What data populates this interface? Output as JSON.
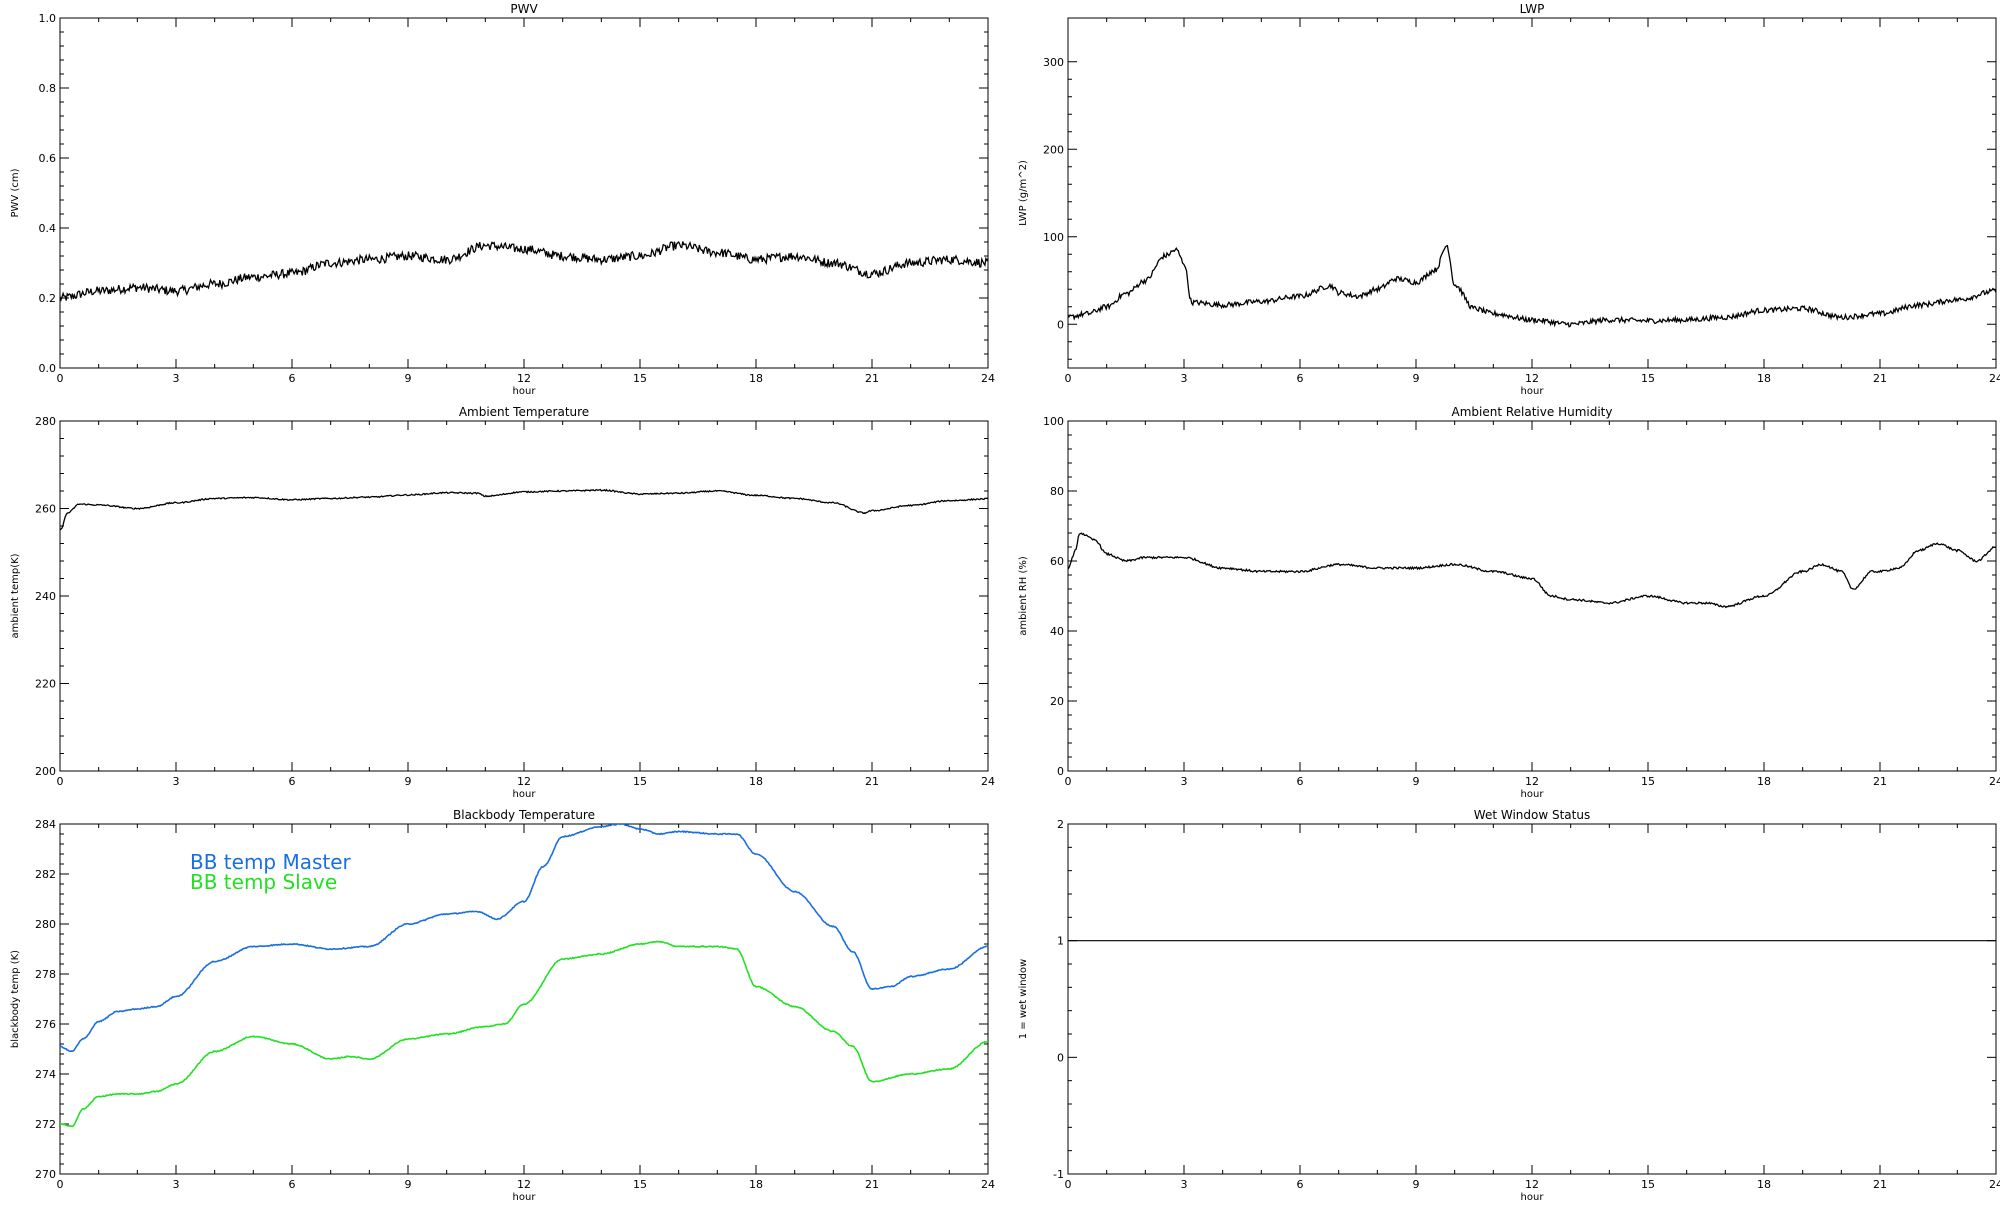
{
  "colors": {
    "master": "#1a6fe0",
    "slave": "#22e022",
    "ink": "#000000"
  },
  "chart_data": [
    {
      "id": "pwv",
      "type": "line",
      "title": "PWV",
      "xlabel": "hour",
      "ylabel": "PWV (cm)",
      "xlim": [
        0,
        24
      ],
      "ylim": [
        0.0,
        1.0
      ],
      "xticks": [
        "0",
        "3",
        "6",
        "9",
        "12",
        "15",
        "18",
        "21",
        "24"
      ],
      "yticks": [
        "0.0",
        "0.2",
        "0.4",
        "0.6",
        "0.8",
        "1.0"
      ],
      "ytick_values": [
        0.0,
        0.2,
        0.4,
        0.6,
        0.8,
        1.0
      ],
      "noise": 0.013,
      "series": [
        {
          "color": "#000000",
          "x": [
            0,
            1,
            2,
            3,
            4,
            5,
            6,
            7,
            8,
            9,
            10,
            11,
            12,
            13,
            14,
            15,
            16,
            17,
            18,
            19,
            20,
            21,
            22,
            23,
            24
          ],
          "y": [
            0.2,
            0.22,
            0.23,
            0.22,
            0.24,
            0.26,
            0.27,
            0.3,
            0.31,
            0.32,
            0.31,
            0.35,
            0.34,
            0.32,
            0.31,
            0.32,
            0.35,
            0.33,
            0.31,
            0.32,
            0.3,
            0.27,
            0.3,
            0.31,
            0.3
          ]
        }
      ]
    },
    {
      "id": "lwp",
      "type": "line",
      "title": "LWP",
      "xlabel": "hour",
      "ylabel": "LWP (g/m^2)",
      "xlim": [
        0,
        24
      ],
      "ylim": [
        -50,
        350
      ],
      "xticks": [
        "0",
        "3",
        "6",
        "9",
        "12",
        "15",
        "18",
        "21",
        "24"
      ],
      "yticks": [
        "0",
        "100",
        "200",
        "300"
      ],
      "ytick_values": [
        0,
        100,
        200,
        300
      ],
      "noise": 3,
      "series": [
        {
          "color": "#000000",
          "x": [
            0,
            0.5,
            1,
            1.5,
            2,
            2.5,
            2.8,
            3,
            3.2,
            4,
            5,
            6,
            6.8,
            7,
            7.5,
            8,
            8.5,
            9,
            9.5,
            9.8,
            10,
            10.5,
            11,
            12,
            13,
            14,
            15,
            16,
            17,
            18,
            19,
            20,
            21,
            22,
            23,
            24
          ],
          "y": [
            8,
            12,
            20,
            35,
            50,
            78,
            85,
            70,
            25,
            22,
            26,
            32,
            44,
            36,
            32,
            40,
            52,
            48,
            62,
            90,
            45,
            18,
            12,
            5,
            0,
            5,
            4,
            5,
            8,
            16,
            18,
            8,
            12,
            22,
            28,
            38
          ]
        }
      ]
    },
    {
      "id": "ambient-temp",
      "type": "line",
      "title": "Ambient Temperature",
      "xlabel": "hour",
      "ylabel": "ambient temp(K)",
      "xlim": [
        0,
        24
      ],
      "ylim": [
        200,
        280
      ],
      "xticks": [
        "0",
        "3",
        "6",
        "9",
        "12",
        "15",
        "18",
        "21",
        "24"
      ],
      "yticks": [
        "200",
        "220",
        "240",
        "260",
        "280"
      ],
      "ytick_values": [
        200,
        220,
        240,
        260,
        280
      ],
      "noise": 0.15,
      "series": [
        {
          "color": "#000000",
          "x": [
            0,
            0.2,
            0.5,
            1,
            2,
            3,
            4,
            5,
            6,
            7,
            8,
            9,
            10,
            10.8,
            11,
            12,
            13,
            14,
            15,
            16,
            17,
            18,
            19,
            20,
            20.8,
            21,
            22,
            23,
            24
          ],
          "y": [
            255,
            259,
            261,
            260.8,
            260,
            261.3,
            262.3,
            262.5,
            262.0,
            262.3,
            262.6,
            263.1,
            263.6,
            263.5,
            262.8,
            263.8,
            264.0,
            264.2,
            263.3,
            263.5,
            264.0,
            263.0,
            262.3,
            261.3,
            259.0,
            259.5,
            260.7,
            261.8,
            262.2
          ]
        }
      ]
    },
    {
      "id": "ambient-rh",
      "type": "line",
      "title": "Ambient Relative Humidity",
      "xlabel": "hour",
      "ylabel": "ambient RH (%)",
      "xlim": [
        0,
        24
      ],
      "ylim": [
        0,
        100
      ],
      "xticks": [
        "0",
        "3",
        "6",
        "9",
        "12",
        "15",
        "18",
        "21",
        "24"
      ],
      "yticks": [
        "0",
        "20",
        "40",
        "60",
        "80",
        "100"
      ],
      "ytick_values": [
        0,
        20,
        40,
        60,
        80,
        100
      ],
      "noise": 0.3,
      "series": [
        {
          "color": "#000000",
          "x": [
            0,
            0.2,
            0.3,
            0.7,
            1,
            1.5,
            2,
            3,
            4,
            5,
            6,
            7,
            8,
            9,
            10,
            11,
            12,
            12.5,
            13,
            14,
            15,
            16,
            16.5,
            17,
            18,
            19,
            19.5,
            20,
            20.3,
            20.8,
            21,
            21.5,
            22,
            22.5,
            23,
            23.5,
            24
          ],
          "y": [
            58,
            63,
            68,
            66,
            62,
            60,
            61,
            61,
            58,
            57,
            57,
            59,
            58,
            58,
            59,
            57,
            55,
            50,
            49,
            48,
            50,
            48,
            48,
            47,
            50,
            57,
            59,
            57,
            52,
            57,
            57,
            58,
            63,
            65,
            63,
            60,
            64
          ]
        }
      ]
    },
    {
      "id": "blackbody-temp",
      "type": "line",
      "title": "Blackbody Temperature",
      "xlabel": "hour",
      "ylabel": "blackbody temp (K)",
      "xlim": [
        0,
        24
      ],
      "ylim": [
        270,
        284
      ],
      "xticks": [
        "0",
        "3",
        "6",
        "9",
        "12",
        "15",
        "18",
        "21",
        "24"
      ],
      "yticks": [
        "270",
        "272",
        "274",
        "276",
        "278",
        "280",
        "282",
        "284"
      ],
      "ytick_values": [
        270,
        272,
        274,
        276,
        278,
        280,
        282,
        284
      ],
      "noise": 0.02,
      "legend": "top-left",
      "series": [
        {
          "name": "BB temp Master",
          "color": "#1a6fe0",
          "x": [
            0,
            0.3,
            0.6,
            1,
            1.5,
            2,
            2.5,
            3,
            4,
            5,
            6,
            7,
            8,
            9,
            10,
            10.8,
            11.3,
            12,
            12.5,
            13,
            14,
            14.5,
            15,
            15.5,
            16,
            17,
            17.5,
            18,
            19,
            20,
            20.5,
            21,
            21.5,
            22,
            23,
            24
          ],
          "y": [
            275.1,
            274.9,
            275.4,
            276.1,
            276.5,
            276.6,
            276.7,
            277.1,
            278.5,
            279.1,
            279.2,
            279.0,
            279.1,
            280.0,
            280.4,
            280.5,
            280.2,
            280.9,
            282.3,
            283.5,
            283.9,
            284.0,
            283.8,
            283.6,
            283.7,
            283.6,
            283.6,
            282.8,
            281.3,
            279.9,
            278.9,
            277.4,
            277.5,
            277.9,
            278.2,
            279.1
          ]
        },
        {
          "name": "BB temp Slave",
          "color": "#22e022",
          "x": [
            0,
            0.3,
            0.6,
            1,
            1.5,
            2,
            2.5,
            3,
            4,
            5,
            6,
            7,
            7.5,
            8,
            9,
            10,
            11,
            11.5,
            12,
            13,
            14,
            15,
            15.5,
            16,
            17,
            17.5,
            18,
            19,
            20,
            20.5,
            21,
            22,
            23,
            24
          ],
          "y": [
            272.0,
            271.9,
            272.6,
            273.1,
            273.2,
            273.2,
            273.3,
            273.6,
            274.9,
            275.5,
            275.2,
            274.6,
            274.7,
            274.6,
            275.4,
            275.6,
            275.9,
            276.0,
            276.8,
            278.6,
            278.8,
            279.2,
            279.3,
            279.1,
            279.1,
            279.0,
            277.5,
            276.7,
            275.7,
            275.1,
            273.7,
            274.0,
            274.2,
            275.3
          ]
        }
      ]
    },
    {
      "id": "wet-window",
      "type": "line",
      "title": "Wet Window Status",
      "xlabel": "hour",
      "ylabel": "1 = wet window",
      "xlim": [
        0,
        24
      ],
      "ylim": [
        -1,
        2
      ],
      "xticks": [
        "0",
        "3",
        "6",
        "9",
        "12",
        "15",
        "18",
        "21",
        "24"
      ],
      "yticks": [
        "-1",
        "0",
        "1",
        "2"
      ],
      "ytick_values": [
        -1,
        0,
        1,
        2
      ],
      "noise": 0,
      "series": [
        {
          "color": "#000000",
          "x": [
            0,
            24
          ],
          "y": [
            1,
            1
          ]
        }
      ]
    }
  ]
}
